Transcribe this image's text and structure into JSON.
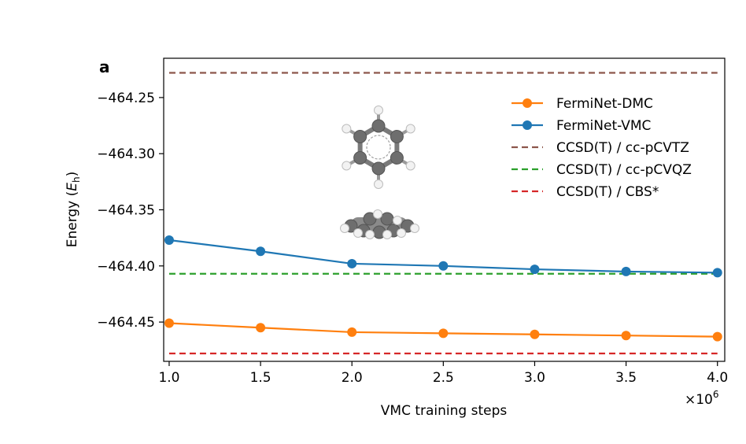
{
  "chart_data": {
    "type": "line",
    "panel_label": "a",
    "xlabel": "VMC training steps",
    "ylabel": "Energy (",
    "ylabel_symbol": "E",
    "ylabel_subscript": "h",
    "ylabel_close": ")",
    "x_multiplier_base": "×10",
    "x_multiplier_exp": "6",
    "xlim": [
      0.97,
      4.04
    ],
    "ylim": [
      -464.485,
      -464.215
    ],
    "xticks": [
      1.0,
      1.5,
      2.0,
      2.5,
      3.0,
      3.5,
      4.0
    ],
    "xtick_labels": [
      "1.0",
      "1.5",
      "2.0",
      "2.5",
      "3.0",
      "3.5",
      "4.0"
    ],
    "yticks": [
      -464.25,
      -464.3,
      -464.35,
      -464.4,
      -464.45
    ],
    "ytick_labels": [
      "−464.25",
      "−464.30",
      "−464.35",
      "−464.40",
      "−464.45"
    ],
    "legend_position": "top-right",
    "x": [
      1.0,
      1.5,
      2.0,
      2.5,
      3.0,
      3.5,
      4.0
    ],
    "series": [
      {
        "name": "FermiNet-DMC",
        "color": "#ff7f0e",
        "style": "solid-markers",
        "values": [
          -464.451,
          -464.455,
          -464.459,
          -464.46,
          -464.461,
          -464.462,
          -464.463
        ]
      },
      {
        "name": "FermiNet-VMC",
        "color": "#1f77b4",
        "style": "solid-markers",
        "values": [
          -464.377,
          -464.387,
          -464.398,
          -464.4,
          -464.403,
          -464.405,
          -464.406
        ]
      }
    ],
    "reference_lines": [
      {
        "name": "CCSD(T) / cc-pCVTZ",
        "color": "#8c564b",
        "value": -464.228
      },
      {
        "name": "CCSD(T) / cc-pCVQZ",
        "color": "#2ca02c",
        "value": -464.407
      },
      {
        "name": "CCSD(T) / CBS*",
        "color": "#d62728",
        "value": -464.478
      }
    ],
    "inset": "benzene-molecule-top-and-side-views"
  }
}
